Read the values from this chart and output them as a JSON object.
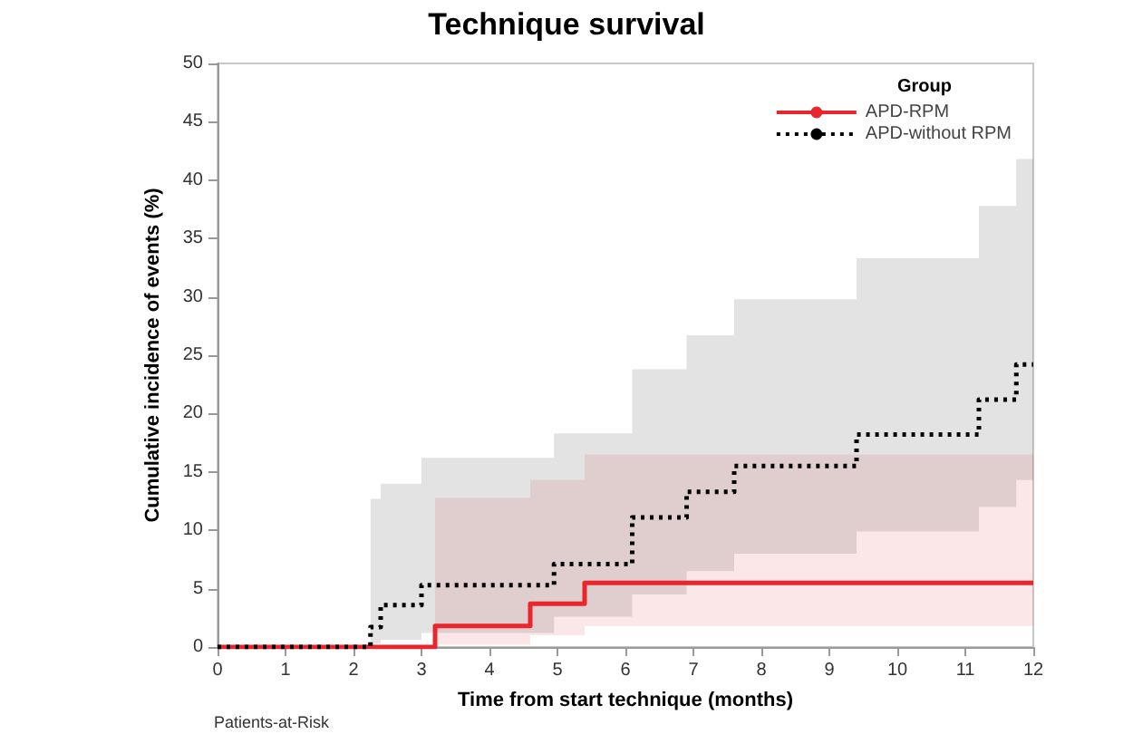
{
  "chart_data": {
    "type": "step",
    "title": "Technique survival",
    "xlabel": "Time from start technique (months)",
    "ylabel": "Cumulative incidence of events (%)",
    "legend_title": "Group",
    "xlim": [
      0,
      12
    ],
    "xticks": [
      0,
      1,
      2,
      3,
      4,
      5,
      6,
      7,
      8,
      9,
      10,
      11,
      12
    ],
    "ylim": [
      0,
      50
    ],
    "yticks": [
      0,
      5,
      10,
      15,
      20,
      25,
      30,
      35,
      40,
      45,
      50
    ],
    "grid": false,
    "legend": "top right",
    "marker": "none",
    "series": [
      {
        "name": "APD-RPM",
        "color": "#e8262b",
        "line_style": "solid",
        "x": [
          0,
          3.2,
          4.6,
          5.4,
          12
        ],
        "values": [
          0,
          1.8,
          3.7,
          5.5,
          5.5
        ],
        "lower": [
          0,
          0.2,
          1,
          1.8,
          1.8
        ],
        "upper": [
          0,
          12.8,
          14.3,
          16.5,
          16.5
        ]
      },
      {
        "name": "APD-without RPM",
        "color": "#000000",
        "line_style": "dotted",
        "x": [
          0,
          2.25,
          2.4,
          3.0,
          4.95,
          6.1,
          6.9,
          7.6,
          9.4,
          11.2,
          11.75,
          12
        ],
        "values": [
          0,
          1.7,
          3.6,
          5.3,
          7.1,
          11.1,
          13.3,
          15.5,
          18.2,
          21.2,
          24.2,
          24.2
        ],
        "lower": [
          0,
          0.3,
          0.6,
          1.2,
          2.6,
          4.5,
          6.5,
          8,
          9.9,
          12,
          14.3,
          14.3
        ],
        "upper": [
          0,
          12.7,
          14,
          16.2,
          18.3,
          23.8,
          26.7,
          29.8,
          33.3,
          37.8,
          41.8,
          41.8
        ]
      }
    ],
    "annotations": [
      "Patients-at-Risk"
    ]
  }
}
